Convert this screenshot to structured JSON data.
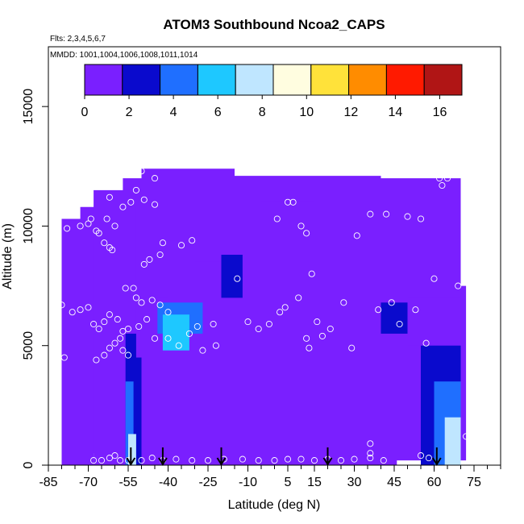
{
  "chart_data": {
    "type": "heatmap",
    "title": "ATOM3 Southbound Ncoa2_CAPS",
    "flights_note": "Flts: 2,3,4,5,6,7",
    "dates_note": "MMDD: 1001,1004,1006,1008,1011,1014",
    "xlabel": "Latitude (deg N)",
    "ylabel": "Altitude (m)",
    "xlim": [
      -85,
      85
    ],
    "ylim": [
      0,
      17500
    ],
    "x_ticks": [
      -85,
      -70,
      -55,
      -40,
      -25,
      -10,
      5,
      15,
      30,
      45,
      60,
      75
    ],
    "x_minor_step": 5,
    "y_ticks": [
      0,
      5000,
      10000,
      15000
    ],
    "colorbar": {
      "ticks": [
        0,
        2,
        4,
        6,
        8,
        10,
        12,
        14,
        16
      ],
      "range": [
        0,
        17
      ],
      "colors": [
        "#7a1fff",
        "#0a0acd",
        "#1f6fff",
        "#1ec8ff",
        "#bfe6ff",
        "#fffde0",
        "#ffe23a",
        "#ff8c00",
        "#ff1a00",
        "#b01515"
      ]
    },
    "arrow_latitudes": [
      -54,
      -42,
      -20,
      20,
      61
    ],
    "background_value": 0.5,
    "regions": [
      {
        "x": [
          -80,
          -68
        ],
        "y": [
          0,
          10200
        ],
        "v": 0.5
      },
      {
        "x": [
          -68,
          -52
        ],
        "y": [
          0,
          11500
        ],
        "v": 0.6
      },
      {
        "x": [
          -56,
          -50
        ],
        "y": [
          0,
          5500
        ],
        "v": 2.0
      },
      {
        "x": [
          -56,
          -53
        ],
        "y": [
          0,
          3500
        ],
        "v": 3.6
      },
      {
        "x": [
          -55,
          -52
        ],
        "y": [
          0,
          1300
        ],
        "v": 7.0
      },
      {
        "x": [
          -52,
          -40
        ],
        "y": [
          4500,
          7000
        ],
        "v": 0.9
      },
      {
        "x": [
          -44,
          -27
        ],
        "y": [
          5500,
          6800
        ],
        "v": 4.5
      },
      {
        "x": [
          -42,
          -32
        ],
        "y": [
          4800,
          6300
        ],
        "v": 5.3
      },
      {
        "x": [
          -30,
          -15
        ],
        "y": [
          8500,
          10200
        ],
        "v": 1.6
      },
      {
        "x": [
          -20,
          -12
        ],
        "y": [
          7000,
          8800
        ],
        "v": 1.8
      },
      {
        "x": [
          -5,
          15
        ],
        "y": [
          11000,
          11800
        ],
        "v": 1.7
      },
      {
        "x": [
          -40,
          -32
        ],
        "y": [
          9400,
          9800
        ],
        "v": 1.5
      },
      {
        "x": [
          40,
          50
        ],
        "y": [
          5500,
          6800
        ],
        "v": 1.8
      },
      {
        "x": [
          50,
          70
        ],
        "y": [
          5000,
          7000
        ],
        "v": 1.5
      },
      {
        "x": [
          55,
          70
        ],
        "y": [
          0,
          5000
        ],
        "v": 2.5
      },
      {
        "x": [
          60,
          70
        ],
        "y": [
          0,
          3500
        ],
        "v": 4.5
      },
      {
        "x": [
          64,
          70
        ],
        "y": [
          0,
          2000
        ],
        "v": 7.0
      }
    ],
    "points": [
      [
        -83,
        9900
      ],
      [
        -78,
        9900
      ],
      [
        -73,
        10000
      ],
      [
        -70,
        10100
      ],
      [
        -69,
        10300
      ],
      [
        -67,
        9800
      ],
      [
        -66,
        9700
      ],
      [
        -64,
        9300
      ],
      [
        -62,
        9100
      ],
      [
        -61,
        9000
      ],
      [
        -63,
        10300
      ],
      [
        -62,
        11200
      ],
      [
        -57,
        10800
      ],
      [
        -54,
        11000
      ],
      [
        -52,
        11500
      ],
      [
        -49,
        11100
      ],
      [
        -45,
        10900
      ],
      [
        -43,
        8800
      ],
      [
        -42,
        9300
      ],
      [
        -49,
        8400
      ],
      [
        -47,
        8600
      ],
      [
        -56,
        7400
      ],
      [
        -53,
        7400
      ],
      [
        -52,
        7000
      ],
      [
        -50,
        6800
      ],
      [
        -46,
        6900
      ],
      [
        -43,
        6700
      ],
      [
        -40,
        6400
      ],
      [
        -35,
        9200
      ],
      [
        -31,
        9400
      ],
      [
        -48,
        6100
      ],
      [
        -51,
        5800
      ],
      [
        -55,
        5700
      ],
      [
        -58,
        5300
      ],
      [
        -60,
        5100
      ],
      [
        -62,
        4900
      ],
      [
        -64,
        4600
      ],
      [
        -57,
        4800
      ],
      [
        -55,
        4600
      ],
      [
        -45,
        5300
      ],
      [
        -40,
        5300
      ],
      [
        -36,
        5000
      ],
      [
        -32,
        5500
      ],
      [
        -29,
        5800
      ],
      [
        -27,
        4800
      ],
      [
        -22,
        5000
      ],
      [
        -80,
        6700
      ],
      [
        -76,
        6400
      ],
      [
        -73,
        6500
      ],
      [
        -70,
        6600
      ],
      [
        -68,
        5900
      ],
      [
        -66,
        5700
      ],
      [
        -64,
        6000
      ],
      [
        -62,
        6300
      ],
      [
        -59,
        6100
      ],
      [
        -57,
        5600
      ],
      [
        -67,
        4400
      ],
      [
        -79,
        4500
      ],
      [
        -14,
        7800
      ],
      [
        -10,
        6000
      ],
      [
        -6,
        5700
      ],
      [
        -2,
        5900
      ],
      [
        2,
        6400
      ],
      [
        4,
        6600
      ],
      [
        5,
        11000
      ],
      [
        7,
        11000
      ],
      [
        1,
        10300
      ],
      [
        10,
        10000
      ],
      [
        12,
        9700
      ],
      [
        14,
        8000
      ],
      [
        9,
        7000
      ],
      [
        12,
        5300
      ],
      [
        13,
        4900
      ],
      [
        16,
        6000
      ],
      [
        18,
        5400
      ],
      [
        21,
        5700
      ],
      [
        26,
        6800
      ],
      [
        29,
        4900
      ],
      [
        31,
        9600
      ],
      [
        36,
        10500
      ],
      [
        39,
        6500
      ],
      [
        42,
        10500
      ],
      [
        44,
        6800
      ],
      [
        47,
        5900
      ],
      [
        50,
        10400
      ],
      [
        53,
        6500
      ],
      [
        55,
        10300
      ],
      [
        57,
        5100
      ],
      [
        60,
        7800
      ],
      [
        62,
        12000
      ],
      [
        63,
        11700
      ],
      [
        65,
        12000
      ],
      [
        69,
        7500
      ],
      [
        72,
        1200
      ],
      [
        36,
        900
      ],
      [
        36,
        500
      ],
      [
        -5,
        12800
      ],
      [
        -45,
        12000
      ],
      [
        -50,
        12300
      ],
      [
        -60,
        10000
      ],
      [
        -23,
        5900
      ],
      [
        -68,
        200
      ],
      [
        -65,
        200
      ],
      [
        -62,
        300
      ],
      [
        -60,
        400
      ],
      [
        -58,
        200
      ],
      [
        -55,
        200
      ],
      [
        -50,
        200
      ],
      [
        -46,
        300
      ],
      [
        -42,
        200
      ],
      [
        -37,
        250
      ],
      [
        -31,
        200
      ],
      [
        -25,
        200
      ],
      [
        -19,
        250
      ],
      [
        -12,
        250
      ],
      [
        -6,
        200
      ],
      [
        0,
        200
      ],
      [
        5,
        250
      ],
      [
        10,
        250
      ],
      [
        15,
        200
      ],
      [
        20,
        250
      ],
      [
        25,
        200
      ],
      [
        30,
        250
      ],
      [
        36,
        300
      ],
      [
        41,
        200
      ],
      [
        55,
        400
      ],
      [
        58,
        300
      ]
    ]
  }
}
